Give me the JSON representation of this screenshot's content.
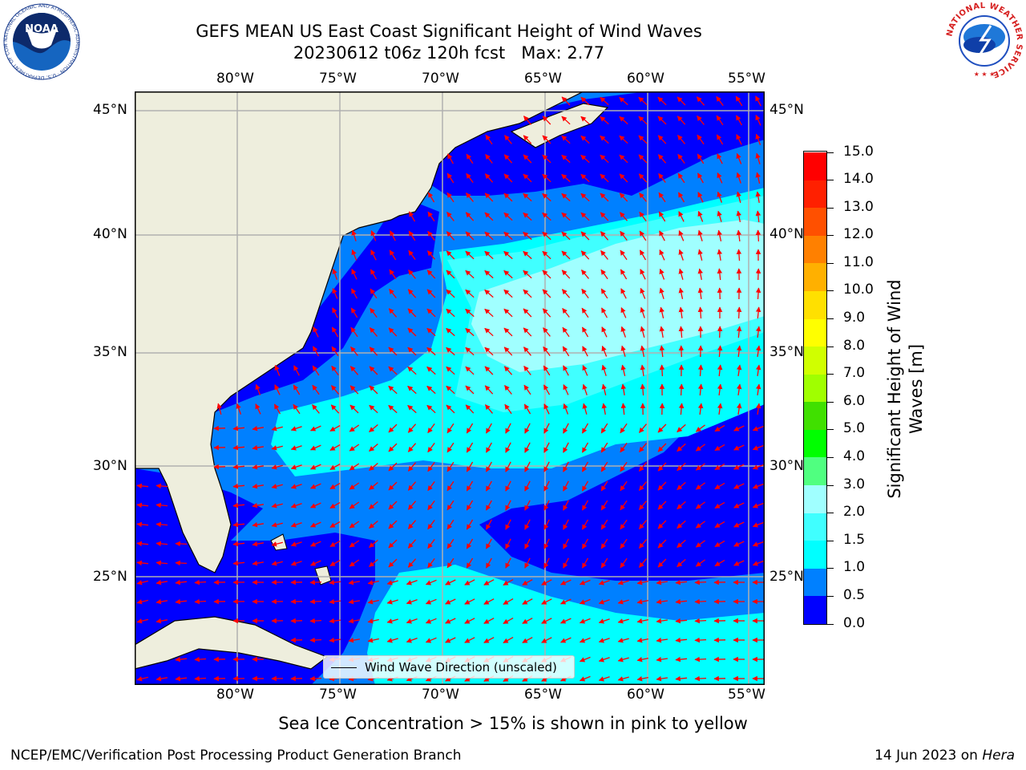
{
  "title": {
    "line1": "GEFS MEAN US East Coast Significant Height of Wind Waves",
    "line2": "20230612 t06z 120h fcst   Max: 2.77"
  },
  "map": {
    "lon_labels": [
      "80°W",
      "75°W",
      "70°W",
      "65°W",
      "60°W",
      "55°W"
    ],
    "lat_labels": [
      "45°N",
      "40°N",
      "35°N",
      "30°N",
      "25°N"
    ],
    "extent": {
      "lon_min": -85,
      "lon_max": -54.3,
      "lat_min": 20.5,
      "lat_max": 45.8
    },
    "legend_label": "Wind Wave Direction (unscaled)",
    "colors": {
      "land": "#eeeedd",
      "arrow": "#ff0000",
      "grid": "#b0b0b0",
      "coast": "#000000"
    }
  },
  "colorbar": {
    "title_line1": "Significant Height of Wind",
    "title_line2": "Waves [m]",
    "tick_labels": [
      "0.0",
      "0.5",
      "1.0",
      "1.5",
      "2.0",
      "3.0",
      "4.0",
      "5.0",
      "6.0",
      "7.0",
      "8.0",
      "9.0",
      "10.0",
      "11.0",
      "12.0",
      "13.0",
      "14.0",
      "15.0"
    ],
    "colors": [
      "#0000ff",
      "#0080ff",
      "#00ffff",
      "#40ffff",
      "#a0ffff",
      "#50ff80",
      "#00ff00",
      "#40e000",
      "#a0ff00",
      "#d0ff00",
      "#ffff00",
      "#ffe000",
      "#ffb000",
      "#ff8000",
      "#ff5000",
      "#ff2000",
      "#ff0000"
    ]
  },
  "caption": "Sea Ice Concentration > 15% is shown in pink to yellow",
  "footer": {
    "left": "NCEP/EMC/Verification Post Processing Product Generation Branch",
    "right_date": "14 Jun 2023 on ",
    "right_machine": "Hera"
  },
  "logos": {
    "noaa_text": "NOAA",
    "noaa_ring": "NATIONAL OCEANIC AND ATMOSPHERIC ADMINISTRATION · U.S. DEPARTMENT OF COMMERCE ·",
    "nws_ring": "NATIONAL WEATHER SERVICE"
  }
}
